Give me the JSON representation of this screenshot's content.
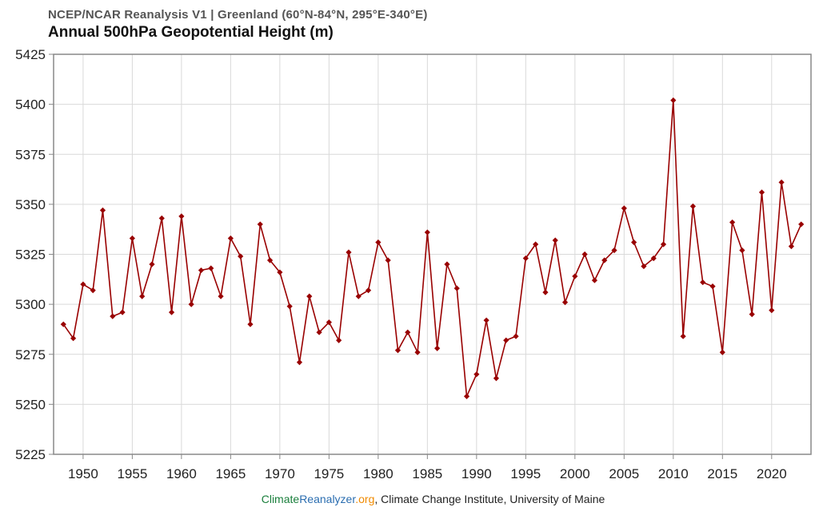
{
  "header": {
    "subtitle": "NCEP/NCAR Reanalysis V1 | Greenland (60°N-84°N, 295°E-340°E)",
    "title": "Annual 500hPa Geopotential Height (m)"
  },
  "footer": {
    "brand_part1": "Climate",
    "brand_part2": "Reanalyzer",
    "brand_part3": ".org",
    "rest": ", Climate Change Institute, University of Maine"
  },
  "colors": {
    "series": "#990000",
    "grid": "#d9d9d9",
    "frame": "#888888",
    "brand_green": "#1a7f3c",
    "brand_blue": "#2a6db0",
    "brand_orange": "#f08a00"
  },
  "chart_data": {
    "type": "line",
    "title": "Annual 500hPa Geopotential Height (m)",
    "xlabel": "",
    "ylabel": "",
    "xlim": [
      1947,
      2024
    ],
    "ylim": [
      5225,
      5425
    ],
    "xticks": [
      1950,
      1955,
      1960,
      1965,
      1970,
      1975,
      1980,
      1985,
      1990,
      1995,
      2000,
      2005,
      2010,
      2015,
      2020
    ],
    "yticks": [
      5225,
      5250,
      5275,
      5300,
      5325,
      5350,
      5375,
      5400,
      5425
    ],
    "grid": true,
    "marker": "diamond",
    "series": [
      {
        "name": "Greenland 500hPa Geopotential Height",
        "x": [
          1948,
          1949,
          1950,
          1951,
          1952,
          1953,
          1954,
          1955,
          1956,
          1957,
          1958,
          1959,
          1960,
          1961,
          1962,
          1963,
          1964,
          1965,
          1966,
          1967,
          1968,
          1969,
          1970,
          1971,
          1972,
          1973,
          1974,
          1975,
          1976,
          1977,
          1978,
          1979,
          1980,
          1981,
          1982,
          1983,
          1984,
          1985,
          1986,
          1987,
          1988,
          1989,
          1990,
          1991,
          1992,
          1993,
          1994,
          1995,
          1996,
          1997,
          1998,
          1999,
          2000,
          2001,
          2002,
          2003,
          2004,
          2005,
          2006,
          2007,
          2008,
          2009,
          2010,
          2011,
          2012,
          2013,
          2014,
          2015,
          2016,
          2017,
          2018,
          2019,
          2020,
          2021,
          2022,
          2023
        ],
        "values": [
          5290,
          5283,
          5310,
          5307,
          5347,
          5294,
          5296,
          5333,
          5304,
          5320,
          5343,
          5296,
          5344,
          5300,
          5317,
          5318,
          5304,
          5333,
          5324,
          5290,
          5340,
          5322,
          5316,
          5299,
          5271,
          5304,
          5286,
          5291,
          5282,
          5326,
          5304,
          5307,
          5331,
          5322,
          5277,
          5286,
          5276,
          5336,
          5278,
          5320,
          5308,
          5254,
          5265,
          5292,
          5263,
          5282,
          5284,
          5323,
          5330,
          5306,
          5332,
          5301,
          5314,
          5325,
          5312,
          5322,
          5327,
          5348,
          5331,
          5319,
          5323,
          5330,
          5402,
          5284,
          5349,
          5311,
          5309,
          5276,
          5341,
          5327,
          5295,
          5356,
          5297,
          5361,
          5329,
          5340
        ]
      }
    ]
  }
}
